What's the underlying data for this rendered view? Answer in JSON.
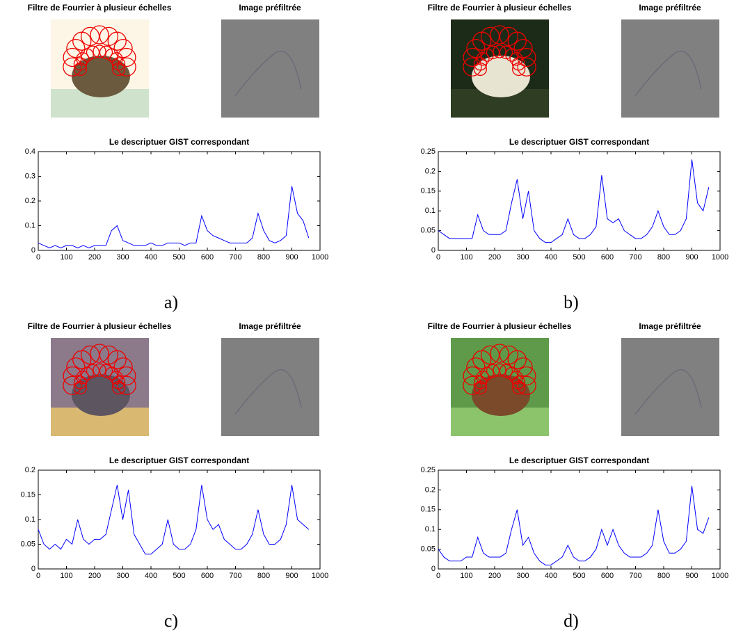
{
  "chart_data": [
    {
      "type": "line",
      "title": "Le descriptuer GIST correspondant",
      "image_titles": [
        "Filtre de Fourrier à plusieur échelles",
        "Image préfiltrée"
      ],
      "caption": "a)",
      "x": [
        0,
        20,
        40,
        60,
        80,
        100,
        120,
        140,
        160,
        180,
        200,
        220,
        240,
        260,
        280,
        300,
        320,
        340,
        360,
        380,
        400,
        420,
        440,
        460,
        480,
        500,
        520,
        540,
        560,
        580,
        600,
        620,
        640,
        660,
        680,
        700,
        720,
        740,
        760,
        780,
        800,
        820,
        840,
        860,
        880,
        900,
        920,
        940,
        960
      ],
      "series": [
        {
          "color": "#0000ff",
          "values": [
            0.03,
            0.02,
            0.01,
            0.02,
            0.01,
            0.02,
            0.02,
            0.01,
            0.02,
            0.01,
            0.02,
            0.02,
            0.02,
            0.08,
            0.1,
            0.04,
            0.03,
            0.02,
            0.02,
            0.02,
            0.03,
            0.02,
            0.02,
            0.03,
            0.03,
            0.03,
            0.02,
            0.03,
            0.03,
            0.14,
            0.08,
            0.06,
            0.05,
            0.04,
            0.03,
            0.03,
            0.03,
            0.03,
            0.05,
            0.15,
            0.08,
            0.04,
            0.03,
            0.04,
            0.06,
            0.26,
            0.15,
            0.12,
            0.05
          ]
        }
      ],
      "xlim": [
        0,
        1000
      ],
      "xticks": [
        0,
        100,
        200,
        300,
        400,
        500,
        600,
        700,
        800,
        900,
        1000
      ],
      "ylim": [
        0,
        0.4
      ],
      "yticks": [
        0,
        0.1,
        0.2,
        0.3,
        0.4
      ]
    },
    {
      "type": "line",
      "title": "Le descriptuer GIST correspondant",
      "image_titles": [
        "Filtre de Fourrier à plusieur échelles",
        "Image préfiltrée"
      ],
      "caption": "b)",
      "x": [
        0,
        20,
        40,
        60,
        80,
        100,
        120,
        140,
        160,
        180,
        200,
        220,
        240,
        260,
        280,
        300,
        320,
        340,
        360,
        380,
        400,
        420,
        440,
        460,
        480,
        500,
        520,
        540,
        560,
        580,
        600,
        620,
        640,
        660,
        680,
        700,
        720,
        740,
        760,
        780,
        800,
        820,
        840,
        860,
        880,
        900,
        920,
        940,
        960
      ],
      "series": [
        {
          "color": "#0000ff",
          "values": [
            0.05,
            0.04,
            0.03,
            0.03,
            0.03,
            0.03,
            0.03,
            0.09,
            0.05,
            0.04,
            0.04,
            0.04,
            0.05,
            0.12,
            0.18,
            0.08,
            0.15,
            0.05,
            0.03,
            0.02,
            0.02,
            0.03,
            0.04,
            0.08,
            0.04,
            0.03,
            0.03,
            0.04,
            0.06,
            0.19,
            0.08,
            0.07,
            0.08,
            0.05,
            0.04,
            0.03,
            0.03,
            0.04,
            0.06,
            0.1,
            0.06,
            0.04,
            0.04,
            0.05,
            0.08,
            0.23,
            0.12,
            0.1,
            0.16
          ]
        }
      ],
      "xlim": [
        0,
        1000
      ],
      "xticks": [
        0,
        100,
        200,
        300,
        400,
        500,
        600,
        700,
        800,
        900,
        1000
      ],
      "ylim": [
        0,
        0.25
      ],
      "yticks": [
        0,
        0.05,
        0.1,
        0.15,
        0.2,
        0.25
      ]
    },
    {
      "type": "line",
      "title": "Le descriptuer GIST correspondant",
      "image_titles": [
        "Filtre de Fourrier à plusieur échelles",
        "Image préfiltrée"
      ],
      "caption": "c)",
      "x": [
        0,
        20,
        40,
        60,
        80,
        100,
        120,
        140,
        160,
        180,
        200,
        220,
        240,
        260,
        280,
        300,
        320,
        340,
        360,
        380,
        400,
        420,
        440,
        460,
        480,
        500,
        520,
        540,
        560,
        580,
        600,
        620,
        640,
        660,
        680,
        700,
        720,
        740,
        760,
        780,
        800,
        820,
        840,
        860,
        880,
        900,
        920,
        940,
        960
      ],
      "series": [
        {
          "color": "#0000ff",
          "values": [
            0.08,
            0.05,
            0.04,
            0.05,
            0.04,
            0.06,
            0.05,
            0.1,
            0.06,
            0.05,
            0.06,
            0.06,
            0.07,
            0.12,
            0.17,
            0.1,
            0.16,
            0.07,
            0.05,
            0.03,
            0.03,
            0.04,
            0.05,
            0.1,
            0.05,
            0.04,
            0.04,
            0.05,
            0.08,
            0.17,
            0.1,
            0.08,
            0.09,
            0.06,
            0.05,
            0.04,
            0.04,
            0.05,
            0.07,
            0.12,
            0.07,
            0.05,
            0.05,
            0.06,
            0.09,
            0.17,
            0.1,
            0.09,
            0.08
          ]
        }
      ],
      "xlim": [
        0,
        1000
      ],
      "xticks": [
        0,
        100,
        200,
        300,
        400,
        500,
        600,
        700,
        800,
        900,
        1000
      ],
      "ylim": [
        0,
        0.2
      ],
      "yticks": [
        0,
        0.05,
        0.1,
        0.15,
        0.2
      ]
    },
    {
      "type": "line",
      "title": "Le descriptuer GIST correspondant",
      "image_titles": [
        "Filtre de Fourrier à plusieur échelles",
        "Image préfiltrée"
      ],
      "caption": "d)",
      "x": [
        0,
        20,
        40,
        60,
        80,
        100,
        120,
        140,
        160,
        180,
        200,
        220,
        240,
        260,
        280,
        300,
        320,
        340,
        360,
        380,
        400,
        420,
        440,
        460,
        480,
        500,
        520,
        540,
        560,
        580,
        600,
        620,
        640,
        660,
        680,
        700,
        720,
        740,
        760,
        780,
        800,
        820,
        840,
        860,
        880,
        900,
        920,
        940,
        960
      ],
      "series": [
        {
          "color": "#0000ff",
          "values": [
            0.05,
            0.03,
            0.02,
            0.02,
            0.02,
            0.03,
            0.03,
            0.08,
            0.04,
            0.03,
            0.03,
            0.03,
            0.04,
            0.1,
            0.15,
            0.06,
            0.08,
            0.04,
            0.02,
            0.01,
            0.01,
            0.02,
            0.03,
            0.06,
            0.03,
            0.02,
            0.02,
            0.03,
            0.05,
            0.1,
            0.06,
            0.1,
            0.06,
            0.04,
            0.03,
            0.03,
            0.03,
            0.04,
            0.06,
            0.15,
            0.07,
            0.04,
            0.04,
            0.05,
            0.07,
            0.21,
            0.1,
            0.09,
            0.13
          ]
        }
      ],
      "xlim": [
        0,
        1000
      ],
      "xticks": [
        0,
        100,
        200,
        300,
        400,
        500,
        600,
        700,
        800,
        900,
        1000
      ],
      "ylim": [
        0,
        0.25
      ],
      "yticks": [
        0,
        0.05,
        0.1,
        0.15,
        0.2,
        0.25
      ]
    }
  ]
}
